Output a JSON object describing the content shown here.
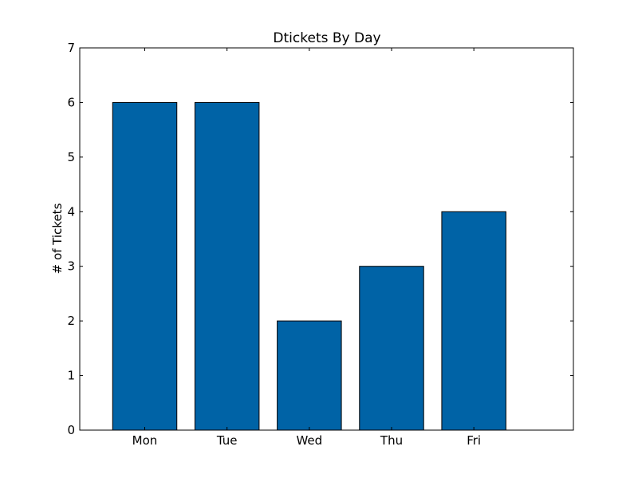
{
  "chart_data": {
    "type": "bar",
    "title": "Dtickets By Day",
    "xlabel": "",
    "ylabel": "# of Tickets",
    "categories": [
      "Mon",
      "Tue",
      "Wed",
      "Thu",
      "Fri"
    ],
    "values": [
      6,
      6,
      2,
      3,
      4
    ],
    "ylim": [
      0,
      7
    ],
    "yticks": [
      "0",
      "1",
      "2",
      "3",
      "4",
      "5",
      "6",
      "7"
    ],
    "grid": false,
    "bar_color": "#0063a6",
    "edge_color": "#000000"
  }
}
